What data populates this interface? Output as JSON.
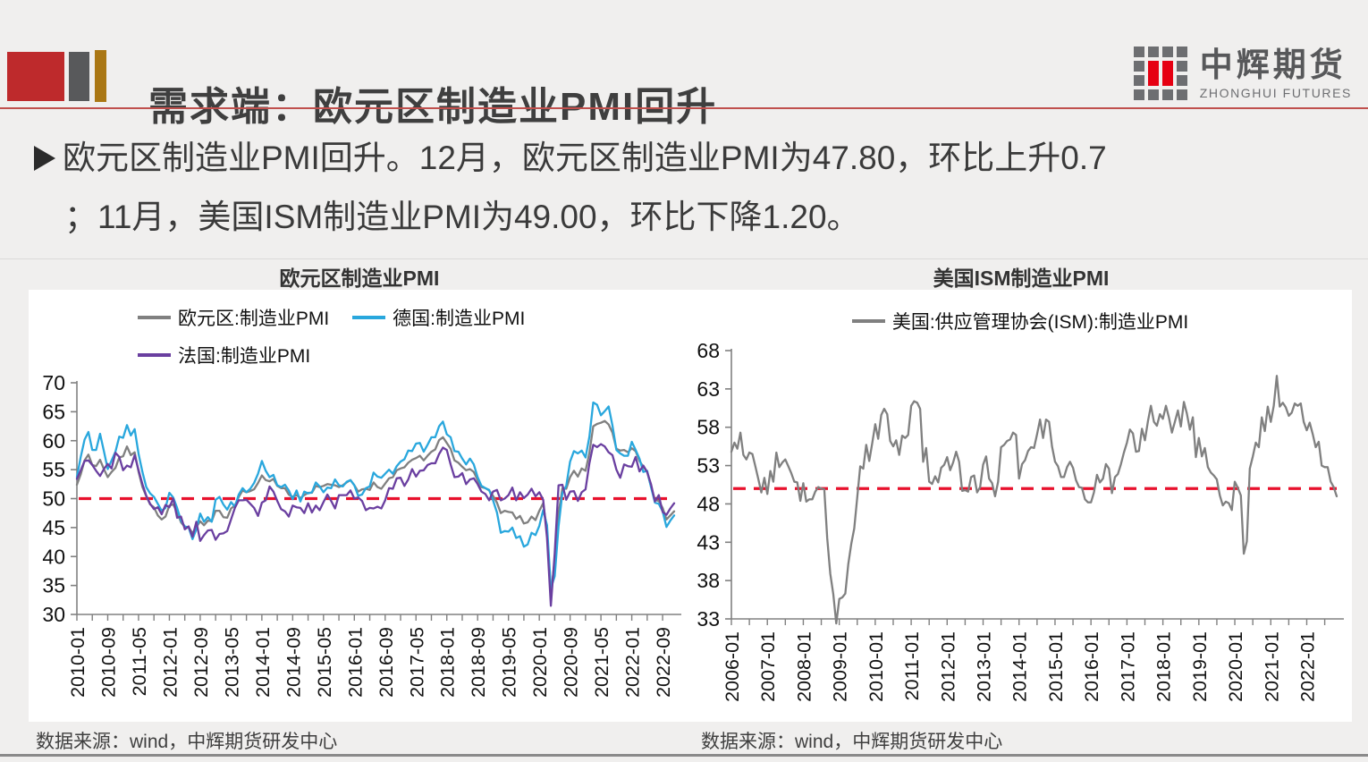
{
  "header": {
    "title": "需求端：欧元区制造业PMI回升",
    "logo_cn": "中辉期货",
    "logo_en": "ZHONGHUI FUTURES"
  },
  "bullet": {
    "line1": "欧元区制造业PMI回升。12月，欧元区制造业PMI为47.80，环比上升0.7",
    "line2": "；11月，美国ISM制造业PMI为49.00，环比下降1.20。"
  },
  "colors": {
    "accent_red": "#be2a2c",
    "bar_gray": "#58595b",
    "bar_gold": "#aa7714",
    "logo_red": "#e60012",
    "logo_gray": "#6d6e71",
    "ref_line_red": "#e8112d",
    "axis_gray": "#808080",
    "eurozone_gray": "#808080",
    "germany_blue": "#29a7dd",
    "france_purple": "#6a3fa0"
  },
  "chart_data": [
    {
      "type": "line",
      "title": "欧元区制造业PMI",
      "ylabel": "",
      "xlabel": "",
      "ylim": [
        30,
        70
      ],
      "yticks": [
        70,
        65,
        60,
        55,
        50,
        45,
        40,
        35,
        30
      ],
      "ref_value": 50,
      "grid": false,
      "legend_position": "top-left-two-rows",
      "x_start": "2010-01",
      "x_tick_step": 8,
      "x_minor_step": 4,
      "x_tick_labels": [
        "2010-01",
        "2010-09",
        "2011-05",
        "2012-01",
        "2012-09",
        "2013-05",
        "2014-01",
        "2014-09",
        "2015-05",
        "2016-01",
        "2016-09",
        "2017-05",
        "2018-01",
        "2018-09",
        "2019-05",
        "2020-01",
        "2020-09",
        "2021-05",
        "2022-01",
        "2022-09"
      ],
      "source": "数据来源：wind，中辉期货研发中心",
      "series": [
        {
          "name": "欧元区:制造业PMI",
          "color": "#808080",
          "values": [
            52.4,
            54.2,
            56.6,
            57.6,
            55.8,
            55.6,
            56.7,
            55.1,
            53.7,
            54.6,
            55.3,
            57.1,
            57.3,
            59.0,
            57.5,
            58.0,
            54.6,
            52.0,
            50.4,
            49.0,
            48.5,
            47.1,
            46.4,
            46.9,
            48.8,
            49.0,
            47.7,
            45.9,
            45.1,
            45.1,
            44.0,
            45.1,
            46.1,
            45.4,
            46.2,
            46.1,
            47.9,
            47.9,
            46.8,
            46.7,
            48.3,
            48.8,
            50.3,
            51.4,
            51.1,
            51.3,
            51.6,
            52.7,
            54.0,
            53.2,
            53.0,
            53.4,
            52.2,
            51.8,
            51.8,
            50.7,
            50.3,
            50.6,
            50.1,
            50.6,
            51.0,
            51.0,
            52.2,
            52.0,
            52.2,
            52.5,
            52.4,
            52.3,
            52.0,
            52.3,
            52.8,
            53.2,
            52.3,
            51.2,
            51.6,
            51.7,
            51.5,
            52.8,
            52.0,
            51.7,
            52.6,
            53.5,
            53.7,
            54.9,
            55.2,
            55.4,
            56.2,
            56.7,
            57.0,
            57.4,
            56.6,
            57.4,
            58.1,
            58.5,
            60.1,
            60.6,
            59.6,
            58.6,
            56.6,
            56.2,
            55.5,
            54.9,
            55.1,
            54.6,
            53.2,
            52.0,
            51.8,
            51.4,
            50.5,
            49.3,
            47.5,
            47.9,
            47.7,
            47.6,
            46.5,
            47.0,
            45.7,
            45.9,
            46.9,
            46.3,
            47.9,
            49.2,
            44.5,
            33.4,
            39.4,
            47.4,
            51.8,
            51.7,
            53.7,
            54.8,
            53.8,
            55.2,
            54.8,
            57.9,
            62.5,
            62.9,
            63.1,
            63.4,
            62.8,
            61.4,
            58.6,
            58.3,
            58.4,
            58.0,
            58.7,
            58.2,
            56.5,
            55.5,
            54.6,
            52.1,
            49.8,
            49.6,
            48.4,
            46.4,
            47.1,
            47.8
          ]
        },
        {
          "name": "德国:制造业PMI",
          "color": "#29a7dd",
          "values": [
            53.7,
            57.2,
            60.2,
            61.5,
            58.4,
            58.4,
            61.2,
            58.2,
            55.1,
            56.6,
            58.1,
            60.7,
            60.5,
            62.7,
            60.9,
            62.0,
            57.7,
            54.6,
            52.0,
            50.9,
            50.3,
            49.1,
            47.9,
            48.4,
            51.0,
            50.2,
            48.4,
            46.2,
            45.2,
            45.0,
            43.0,
            44.7,
            47.4,
            46.0,
            46.8,
            46.0,
            49.8,
            50.3,
            49.0,
            48.1,
            49.4,
            48.6,
            50.7,
            51.8,
            51.1,
            51.7,
            52.7,
            54.3,
            56.5,
            54.8,
            53.7,
            54.1,
            52.3,
            52.0,
            52.4,
            51.4,
            49.9,
            51.4,
            49.5,
            51.2,
            50.9,
            51.1,
            52.8,
            52.1,
            51.1,
            51.9,
            51.8,
            53.3,
            52.3,
            52.1,
            52.9,
            53.2,
            52.3,
            50.5,
            50.7,
            51.8,
            52.1,
            54.5,
            53.8,
            53.6,
            54.3,
            55.0,
            54.3,
            55.6,
            56.4,
            56.8,
            58.3,
            58.2,
            59.5,
            59.6,
            58.1,
            59.3,
            60.6,
            60.6,
            62.5,
            63.3,
            61.1,
            60.6,
            58.2,
            58.1,
            56.9,
            55.9,
            56.9,
            55.9,
            53.7,
            52.2,
            51.8,
            51.5,
            49.7,
            47.6,
            44.1,
            44.4,
            44.3,
            45.0,
            43.2,
            43.5,
            41.7,
            42.1,
            44.1,
            43.7,
            45.3,
            48.0,
            45.4,
            34.5,
            36.6,
            45.2,
            51.0,
            52.2,
            56.4,
            58.2,
            57.8,
            58.3,
            57.1,
            60.7,
            66.6,
            66.2,
            64.4,
            65.1,
            65.9,
            62.6,
            58.4,
            57.8,
            57.4,
            57.4,
            59.8,
            58.4,
            56.9,
            54.6,
            54.8,
            52.0,
            49.3,
            49.1,
            47.8,
            45.1,
            46.2,
            47.1
          ]
        },
        {
          "name": "法国:制造业PMI",
          "color": "#6a3fa0",
          "values": [
            53.4,
            54.9,
            56.5,
            56.6,
            55.8,
            54.8,
            53.9,
            55.1,
            56.0,
            55.2,
            57.9,
            57.2,
            54.9,
            55.7,
            55.4,
            57.5,
            54.9,
            52.5,
            50.5,
            49.1,
            48.2,
            48.5,
            47.3,
            48.9,
            48.5,
            50.0,
            46.7,
            46.9,
            44.7,
            45.2,
            43.4,
            46.0,
            42.7,
            43.7,
            44.5,
            44.6,
            42.9,
            43.9,
            44.0,
            44.4,
            46.4,
            48.4,
            49.7,
            49.7,
            49.8,
            49.1,
            48.4,
            47.0,
            49.3,
            49.7,
            52.1,
            51.2,
            49.6,
            48.2,
            47.8,
            46.9,
            48.8,
            48.5,
            48.4,
            47.5,
            49.2,
            47.6,
            48.8,
            48.0,
            49.4,
            50.7,
            49.6,
            48.3,
            50.6,
            50.6,
            50.6,
            51.4,
            50.0,
            50.2,
            49.6,
            48.0,
            48.4,
            48.3,
            48.6,
            48.3,
            49.7,
            51.8,
            51.7,
            53.5,
            53.6,
            52.2,
            53.3,
            55.1,
            53.8,
            54.8,
            54.9,
            55.8,
            56.1,
            56.1,
            57.7,
            58.8,
            58.4,
            55.9,
            53.7,
            53.8,
            54.4,
            52.5,
            53.3,
            53.5,
            52.5,
            51.2,
            50.8,
            49.7,
            51.2,
            51.5,
            49.7,
            50.0,
            50.6,
            51.9,
            49.7,
            51.1,
            50.1,
            50.7,
            51.7,
            50.4,
            51.1,
            49.8,
            43.2,
            31.5,
            40.6,
            52.3,
            52.4,
            49.8,
            51.2,
            51.3,
            49.6,
            51.1,
            51.6,
            56.1,
            59.3,
            58.9,
            59.4,
            59.0,
            58.0,
            57.5,
            55.0,
            53.6,
            55.9,
            55.6,
            55.5,
            57.2,
            54.7,
            55.7,
            54.6,
            52.5,
            49.5,
            50.6,
            47.7,
            47.2,
            48.3,
            49.2
          ]
        }
      ]
    },
    {
      "type": "line",
      "title": "美国ISM制造业PMI",
      "ylabel": "",
      "xlabel": "",
      "ylim": [
        33,
        68
      ],
      "yticks": [
        68,
        63,
        58,
        53,
        48,
        43,
        38,
        33
      ],
      "ref_value": 50,
      "grid": false,
      "legend_position": "top-center",
      "x_start": "2006-01",
      "x_tick_step": 12,
      "x_minor_step": 6,
      "x_tick_labels": [
        "2006-01",
        "2007-01",
        "2008-01",
        "2009-01",
        "2010-01",
        "2011-01",
        "2012-01",
        "2013-01",
        "2014-01",
        "2015-01",
        "2016-01",
        "2017-01",
        "2018-01",
        "2019-01",
        "2020-01",
        "2021-01",
        "2022-01"
      ],
      "source": "数据来源：wind，中辉期货研发中心",
      "series": [
        {
          "name": "美国:供应管理协会(ISM):制造业PMI",
          "color": "#808080",
          "values": [
            54.8,
            56.0,
            55.2,
            57.3,
            54.4,
            53.8,
            54.7,
            54.5,
            52.9,
            51.2,
            49.5,
            51.4,
            49.3,
            52.3,
            50.9,
            54.7,
            52.8,
            53.4,
            53.8,
            52.9,
            52.0,
            50.9,
            50.8,
            48.4,
            50.7,
            48.3,
            48.6,
            48.6,
            49.6,
            50.2,
            50.0,
            49.9,
            43.5,
            38.9,
            36.2,
            32.4,
            35.6,
            35.8,
            36.3,
            40.1,
            42.8,
            44.8,
            48.9,
            52.9,
            52.6,
            55.7,
            53.6,
            55.9,
            58.4,
            56.5,
            59.6,
            60.4,
            59.7,
            56.2,
            55.5,
            56.3,
            54.4,
            56.9,
            56.6,
            57.0,
            60.8,
            61.4,
            61.2,
            60.4,
            53.5,
            55.3,
            50.9,
            50.6,
            51.6,
            50.8,
            52.7,
            53.1,
            54.1,
            52.4,
            53.4,
            54.8,
            53.5,
            49.7,
            49.8,
            49.6,
            51.5,
            51.7,
            49.5,
            50.2,
            53.1,
            54.2,
            51.3,
            50.7,
            49.0,
            50.9,
            55.4,
            55.7,
            56.2,
            56.4,
            57.3,
            57.0,
            51.3,
            53.2,
            53.7,
            54.9,
            55.4,
            55.3,
            57.1,
            59.0,
            56.6,
            59.0,
            58.7,
            55.5,
            53.5,
            52.9,
            51.5,
            51.5,
            52.8,
            53.5,
            52.7,
            51.1,
            50.2,
            50.1,
            48.6,
            48.2,
            48.2,
            49.5,
            51.8,
            50.8,
            51.3,
            53.2,
            52.6,
            49.4,
            51.5,
            51.9,
            53.2,
            54.7,
            56.0,
            57.7,
            57.2,
            54.8,
            54.9,
            57.8,
            56.3,
            58.8,
            60.8,
            58.7,
            58.2,
            59.7,
            59.1,
            60.8,
            59.3,
            57.3,
            58.7,
            60.2,
            58.1,
            61.3,
            59.8,
            57.7,
            59.3,
            54.1,
            56.6,
            54.2,
            55.3,
            52.8,
            52.1,
            51.7,
            51.2,
            49.1,
            47.8,
            48.3,
            48.1,
            47.2,
            50.9,
            50.1,
            49.1,
            41.5,
            43.1,
            52.6,
            54.2,
            56.0,
            55.4,
            59.3,
            57.5,
            60.7,
            58.7,
            60.8,
            64.7,
            60.7,
            61.2,
            60.6,
            59.5,
            59.9,
            61.1,
            60.8,
            61.1,
            58.7,
            57.6,
            58.6,
            57.1,
            55.4,
            56.1,
            53.0,
            52.8,
            52.8,
            50.9,
            50.2,
            49.0
          ]
        }
      ]
    }
  ]
}
